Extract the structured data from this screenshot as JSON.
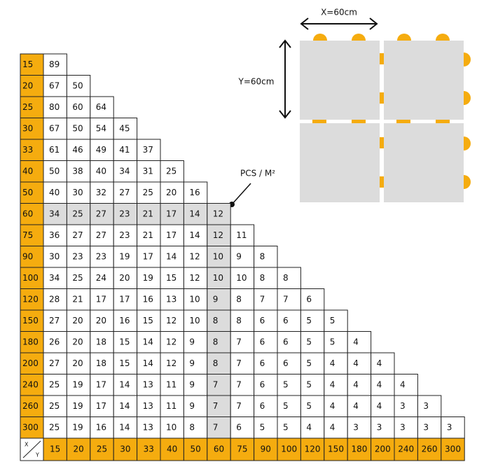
{
  "diagram": {
    "x_label": "X=60cm",
    "y_label": "Y=60cm",
    "unit_label": "PCS / M²"
  },
  "table": {
    "corner_x": "X",
    "corner_y": "Y",
    "columns": [
      15,
      20,
      25,
      30,
      33,
      40,
      50,
      60,
      75,
      90,
      100,
      120,
      150,
      180,
      200,
      240,
      260,
      300
    ],
    "rows": [
      {
        "label": 15,
        "values": [
          89
        ]
      },
      {
        "label": 20,
        "values": [
          67,
          50
        ]
      },
      {
        "label": 25,
        "values": [
          80,
          60,
          64
        ]
      },
      {
        "label": 30,
        "values": [
          67,
          50,
          54,
          45
        ]
      },
      {
        "label": 33,
        "values": [
          61,
          46,
          49,
          41,
          37
        ]
      },
      {
        "label": 40,
        "values": [
          50,
          38,
          40,
          34,
          31,
          25
        ]
      },
      {
        "label": 50,
        "values": [
          40,
          30,
          32,
          27,
          25,
          20,
          16
        ]
      },
      {
        "label": 60,
        "values": [
          34,
          25,
          27,
          23,
          21,
          17,
          14,
          12
        ]
      },
      {
        "label": 75,
        "values": [
          36,
          27,
          27,
          23,
          21,
          17,
          14,
          12,
          11
        ]
      },
      {
        "label": 90,
        "values": [
          30,
          23,
          23,
          19,
          17,
          14,
          12,
          10,
          9,
          8
        ]
      },
      {
        "label": 100,
        "values": [
          34,
          25,
          24,
          20,
          19,
          15,
          12,
          10,
          10,
          8,
          8
        ]
      },
      {
        "label": 120,
        "values": [
          28,
          21,
          17,
          17,
          16,
          13,
          10,
          9,
          8,
          7,
          7,
          6
        ]
      },
      {
        "label": 150,
        "values": [
          27,
          20,
          20,
          16,
          15,
          12,
          10,
          8,
          8,
          6,
          6,
          5,
          5
        ]
      },
      {
        "label": 180,
        "values": [
          26,
          20,
          18,
          15,
          14,
          12,
          9,
          8,
          7,
          6,
          6,
          5,
          5,
          4
        ]
      },
      {
        "label": 200,
        "values": [
          27,
          20,
          18,
          15,
          14,
          12,
          9,
          8,
          7,
          6,
          6,
          5,
          4,
          4,
          4
        ]
      },
      {
        "label": 240,
        "values": [
          25,
          19,
          17,
          14,
          13,
          11,
          9,
          7,
          7,
          6,
          5,
          5,
          4,
          4,
          4,
          4
        ]
      },
      {
        "label": 260,
        "values": [
          25,
          19,
          17,
          14,
          13,
          11,
          9,
          7,
          7,
          6,
          5,
          5,
          4,
          4,
          4,
          3,
          3
        ]
      },
      {
        "label": 300,
        "values": [
          25,
          19,
          16,
          14,
          13,
          10,
          8,
          7,
          6,
          5,
          5,
          4,
          4,
          3,
          3,
          3,
          3,
          3
        ]
      }
    ]
  }
}
